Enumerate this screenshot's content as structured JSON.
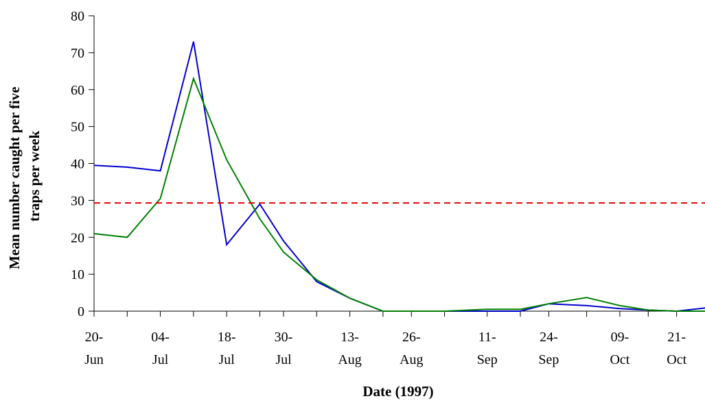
{
  "chart_data": {
    "type": "line",
    "title": "",
    "xlabel": "Date (1997)",
    "ylabel_lines": [
      "Mean number caught per five",
      "traps per week"
    ],
    "ylim": [
      0,
      80
    ],
    "yticks": [
      0,
      10,
      20,
      30,
      40,
      50,
      60,
      70,
      80
    ],
    "x_ticks": [
      {
        "date": "1997-06-20",
        "day": "20-",
        "month": "Jun"
      },
      {
        "date": "1997-07-04",
        "day": "04-",
        "month": "Jul"
      },
      {
        "date": "1997-07-18",
        "day": "18-",
        "month": "Jul"
      },
      {
        "date": "1997-07-30",
        "day": "30-",
        "month": "Jul"
      },
      {
        "date": "1997-08-13",
        "day": "13-",
        "month": "Aug"
      },
      {
        "date": "1997-08-26",
        "day": "26-",
        "month": "Aug"
      },
      {
        "date": "1997-09-11",
        "day": "11-",
        "month": "Sep"
      },
      {
        "date": "1997-09-24",
        "day": "24-",
        "month": "Sep"
      },
      {
        "date": "1997-10-09",
        "day": "09-",
        "month": "Oct"
      },
      {
        "date": "1997-10-21",
        "day": "21-",
        "month": "Oct"
      }
    ],
    "x": [
      "1997-06-20",
      "1997-06-27",
      "1997-07-04",
      "1997-07-11",
      "1997-07-18",
      "1997-07-25",
      "1997-07-30",
      "1997-08-06",
      "1997-08-13",
      "1997-08-20",
      "1997-08-26",
      "1997-09-02",
      "1997-09-11",
      "1997-09-18",
      "1997-09-24",
      "1997-10-02",
      "1997-10-09",
      "1997-10-15",
      "1997-10-21",
      "1997-10-28"
    ],
    "series": [
      {
        "color": "#0000cc",
        "values": [
          39.5,
          39,
          38,
          73,
          18,
          29,
          19,
          8,
          3.5,
          0,
          0,
          0,
          0,
          0,
          2,
          1.5,
          0.7,
          0.3,
          0,
          1
        ]
      },
      {
        "color": "#008000",
        "values": [
          21,
          20,
          30.5,
          63,
          41,
          25,
          16,
          8.5,
          3.5,
          0,
          0,
          0,
          0.5,
          0.5,
          2,
          3.7,
          1.5,
          0.3,
          0,
          0
        ]
      }
    ],
    "reference_line": {
      "y": 29.3,
      "color": "#e00000",
      "style": "dashed"
    },
    "grid": false,
    "legend": "none"
  }
}
